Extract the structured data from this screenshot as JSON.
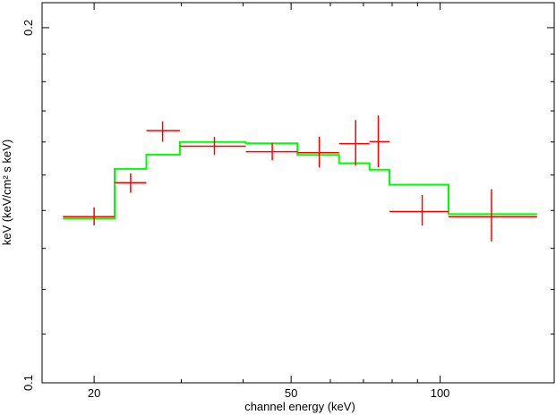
{
  "chart_data": {
    "type": "line",
    "title": "",
    "xlabel": "channel energy (keV)",
    "ylabel": "keV (keV/cm² s keV)",
    "xscale": "log",
    "yscale": "log",
    "xlim": [
      15.7,
      170
    ],
    "ylim": [
      0.1,
      0.21
    ],
    "x_ticks": [
      20,
      50,
      100
    ],
    "x_tick_labels": [
      "20",
      "50",
      "100"
    ],
    "y_ticks": [
      0.1,
      0.2
    ],
    "y_tick_labels": [
      "0.1",
      "0.2"
    ],
    "grid": false,
    "legend": "none",
    "series": [
      {
        "kind": "data",
        "color": "#ff0000",
        "points": [
          {
            "x": 20.0,
            "xlo": 17.3,
            "xhi": 22.0,
            "y": 0.1383,
            "ylo": 0.136,
            "yhi": 0.1408
          },
          {
            "x": 23.7,
            "xlo": 22.0,
            "xhi": 25.5,
            "y": 0.1478,
            "ylo": 0.1449,
            "yhi": 0.1505
          },
          {
            "x": 27.5,
            "xlo": 25.5,
            "xhi": 29.8,
            "y": 0.1636,
            "ylo": 0.1601,
            "yhi": 0.1666
          },
          {
            "x": 35.0,
            "xlo": 29.8,
            "xhi": 40.5,
            "y": 0.1587,
            "ylo": 0.156,
            "yhi": 0.1616
          },
          {
            "x": 45.8,
            "xlo": 40.5,
            "xhi": 51.5,
            "y": 0.157,
            "ylo": 0.1544,
            "yhi": 0.1597
          },
          {
            "x": 57.0,
            "xlo": 51.5,
            "xhi": 62.5,
            "y": 0.1567,
            "ylo": 0.1522,
            "yhi": 0.1617
          },
          {
            "x": 67.5,
            "xlo": 62.5,
            "xhi": 72.0,
            "y": 0.1595,
            "ylo": 0.1528,
            "yhi": 0.167
          },
          {
            "x": 75.0,
            "xlo": 72.0,
            "xhi": 79.0,
            "y": 0.1601,
            "ylo": 0.1523,
            "yhi": 0.1685
          },
          {
            "x": 92.0,
            "xlo": 79.0,
            "xhi": 104.0,
            "y": 0.1397,
            "ylo": 0.1359,
            "yhi": 0.1443
          },
          {
            "x": 127.0,
            "xlo": 104.0,
            "xhi": 157.0,
            "y": 0.1383,
            "ylo": 0.1318,
            "yhi": 0.1459
          }
        ]
      },
      {
        "kind": "model",
        "color": "#00ff00",
        "bins": [
          {
            "xlo": 17.3,
            "xhi": 22.0,
            "y": 0.1378
          },
          {
            "xlo": 22.0,
            "xhi": 25.5,
            "y": 0.1518
          },
          {
            "xlo": 25.5,
            "xhi": 29.8,
            "y": 0.1561
          },
          {
            "xlo": 29.8,
            "xhi": 40.5,
            "y": 0.16
          },
          {
            "xlo": 40.5,
            "xhi": 51.5,
            "y": 0.1596
          },
          {
            "xlo": 51.5,
            "xhi": 62.5,
            "y": 0.156
          },
          {
            "xlo": 62.5,
            "xhi": 72.0,
            "y": 0.1535
          },
          {
            "xlo": 72.0,
            "xhi": 79.0,
            "y": 0.1516
          },
          {
            "xlo": 79.0,
            "xhi": 104.0,
            "y": 0.1472
          },
          {
            "xlo": 104.0,
            "xhi": 157.0,
            "y": 0.139
          }
        ]
      }
    ]
  }
}
